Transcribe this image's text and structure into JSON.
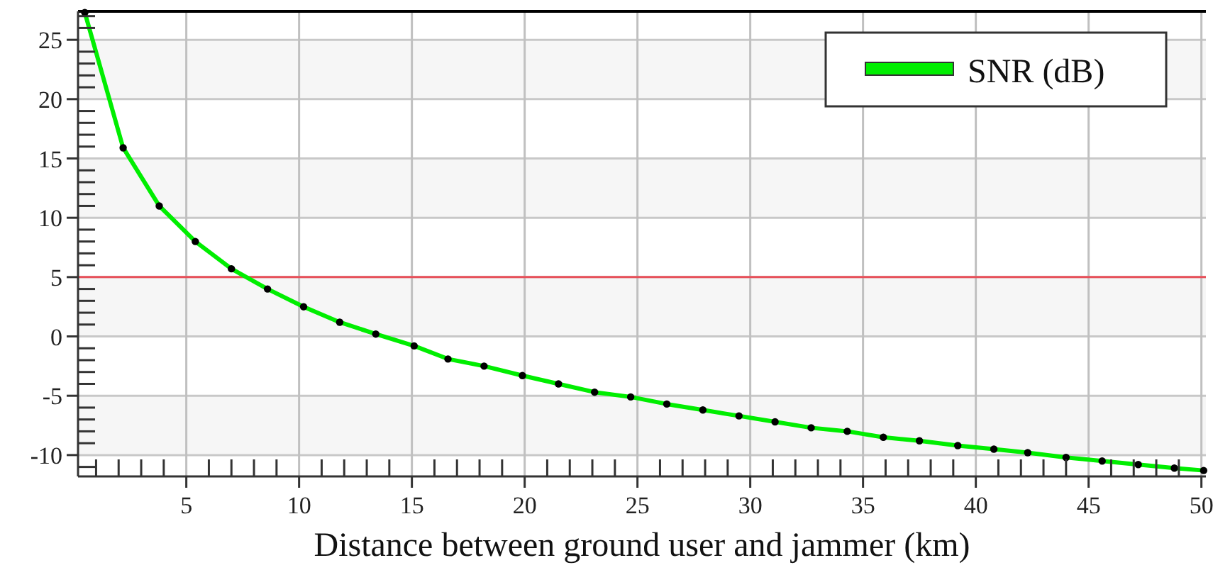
{
  "chart_data": {
    "type": "line",
    "xlabel": "Distance between ground user and jammer (km)",
    "x": [
      0.5,
      2.2,
      3.8,
      5.4,
      7.0,
      8.6,
      10.2,
      11.8,
      13.4,
      15.1,
      16.6,
      18.2,
      19.9,
      21.5,
      23.1,
      24.7,
      26.3,
      27.9,
      29.5,
      31.1,
      32.7,
      34.3,
      35.9,
      37.5,
      39.2,
      40.8,
      42.3,
      44.0,
      45.6,
      47.2,
      48.8,
      50.1
    ],
    "series": [
      {
        "name": "SNR (dB)",
        "color": "#00ee00",
        "values": [
          27.3,
          15.9,
          11.0,
          8.0,
          5.7,
          4.0,
          2.5,
          1.2,
          0.2,
          -0.8,
          -1.9,
          -2.5,
          -3.3,
          -4.0,
          -4.7,
          -5.1,
          -5.7,
          -6.2,
          -6.7,
          -7.2,
          -7.7,
          -8.0,
          -8.5,
          -8.8,
          -9.2,
          -9.5,
          -9.8,
          -10.2,
          -10.5,
          -10.8,
          -11.1,
          -11.3
        ]
      }
    ],
    "xlim": [
      0.2,
      50.2
    ],
    "ylim": [
      -11.8,
      27.4
    ],
    "xticks": [
      {
        "value": 1,
        "label": null
      },
      {
        "value": 2,
        "label": null
      },
      {
        "value": 3,
        "label": null
      },
      {
        "value": 4,
        "label": null
      },
      5,
      {
        "value": 6,
        "label": null
      },
      {
        "value": 7,
        "label": null
      },
      {
        "value": 8,
        "label": null
      },
      {
        "value": 9,
        "label": null
      },
      10,
      {
        "value": 11,
        "label": null
      },
      {
        "value": 12,
        "label": null
      },
      {
        "value": 13,
        "label": null
      },
      {
        "value": 14,
        "label": null
      },
      15,
      {
        "value": 16,
        "label": null
      },
      {
        "value": 17,
        "label": null
      },
      {
        "value": 18,
        "label": null
      },
      {
        "value": 19,
        "label": null
      },
      20,
      {
        "value": 21,
        "label": null
      },
      {
        "value": 22,
        "label": null
      },
      {
        "value": 23,
        "label": null
      },
      {
        "value": 24,
        "label": null
      },
      25,
      {
        "value": 26,
        "label": null
      },
      {
        "value": 27,
        "label": null
      },
      {
        "value": 28,
        "label": null
      },
      {
        "value": 29,
        "label": null
      },
      30,
      {
        "value": 31,
        "label": null
      },
      {
        "value": 32,
        "label": null
      },
      {
        "value": 33,
        "label": null
      },
      {
        "value": 34,
        "label": null
      },
      35,
      {
        "value": 36,
        "label": null
      },
      {
        "value": 37,
        "label": null
      },
      {
        "value": 38,
        "label": null
      },
      {
        "value": 39,
        "label": null
      },
      40,
      {
        "value": 41,
        "label": null
      },
      {
        "value": 42,
        "label": null
      },
      {
        "value": 43,
        "label": null
      },
      {
        "value": 44,
        "label": null
      },
      45,
      {
        "value": 46,
        "label": null
      },
      {
        "value": 47,
        "label": null
      },
      {
        "value": 48,
        "label": null
      },
      {
        "value": 49,
        "label": null
      },
      50
    ],
    "yticks": [
      {
        "value": -11,
        "label": null
      },
      -10,
      {
        "value": -9,
        "label": null
      },
      {
        "value": -8,
        "label": null
      },
      {
        "value": -7,
        "label": null
      },
      {
        "value": -6,
        "label": null
      },
      -5,
      {
        "value": -4,
        "label": null
      },
      {
        "value": -3,
        "label": null
      },
      {
        "value": -2,
        "label": null
      },
      {
        "value": -1,
        "label": null
      },
      0,
      {
        "value": 1,
        "label": null
      },
      {
        "value": 2,
        "label": null
      },
      {
        "value": 3,
        "label": null
      },
      {
        "value": 4,
        "label": null
      },
      5,
      {
        "value": 6,
        "label": null
      },
      {
        "value": 7,
        "label": null
      },
      {
        "value": 8,
        "label": null
      },
      {
        "value": 9,
        "label": null
      },
      10,
      {
        "value": 11,
        "label": null
      },
      {
        "value": 12,
        "label": null
      },
      {
        "value": 13,
        "label": null
      },
      {
        "value": 14,
        "label": null
      },
      15,
      {
        "value": 16,
        "label": null
      },
      {
        "value": 17,
        "label": null
      },
      {
        "value": 18,
        "label": null
      },
      {
        "value": 19,
        "label": null
      },
      20,
      {
        "value": 21,
        "label": null
      },
      {
        "value": 22,
        "label": null
      },
      {
        "value": 23,
        "label": null
      },
      {
        "value": 24,
        "label": null
      },
      25,
      {
        "value": 26,
        "label": null
      },
      {
        "value": 27,
        "label": null
      }
    ],
    "ref_lines": [
      {
        "axis": "y",
        "value": 5,
        "color": "#e8505a"
      }
    ],
    "grid": true,
    "legend": "top right",
    "marker": "circle",
    "line_style": "solid"
  }
}
